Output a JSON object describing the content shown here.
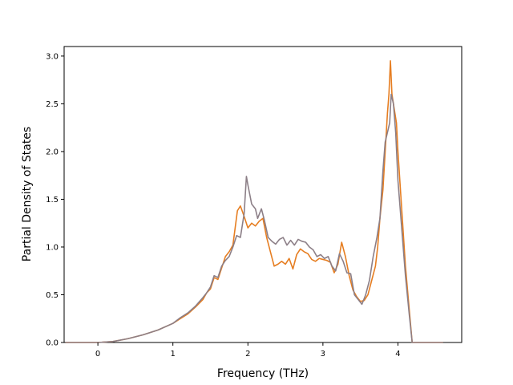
{
  "chart_data": {
    "type": "line",
    "title": "",
    "xlabel": "Frequency (THz)",
    "ylabel": "Partial Density of States",
    "xlim": [
      -0.45,
      4.85
    ],
    "ylim": [
      0.0,
      3.1
    ],
    "x_ticks": [
      0,
      1,
      2,
      3,
      4
    ],
    "y_ticks": [
      0.0,
      0.5,
      1.0,
      1.5,
      2.0,
      2.5,
      3.0
    ],
    "x_tick_labels": [
      "0",
      "1",
      "2",
      "3",
      "4"
    ],
    "y_tick_labels": [
      "0.0",
      "0.5",
      "1.0",
      "1.5",
      "2.0",
      "2.5",
      "3.0"
    ],
    "grid": false,
    "legend": "none",
    "series": [
      {
        "color": "#e67e22",
        "points": [
          [
            -0.43,
            0.0
          ],
          [
            0.0,
            0.0
          ],
          [
            0.2,
            0.01
          ],
          [
            0.4,
            0.04
          ],
          [
            0.6,
            0.08
          ],
          [
            0.8,
            0.13
          ],
          [
            1.0,
            0.2
          ],
          [
            1.1,
            0.25
          ],
          [
            1.2,
            0.3
          ],
          [
            1.3,
            0.37
          ],
          [
            1.4,
            0.45
          ],
          [
            1.45,
            0.52
          ],
          [
            1.5,
            0.56
          ],
          [
            1.55,
            0.68
          ],
          [
            1.6,
            0.66
          ],
          [
            1.65,
            0.78
          ],
          [
            1.7,
            0.9
          ],
          [
            1.75,
            0.95
          ],
          [
            1.8,
            1.02
          ],
          [
            1.83,
            1.2
          ],
          [
            1.86,
            1.38
          ],
          [
            1.9,
            1.43
          ],
          [
            1.95,
            1.32
          ],
          [
            2.0,
            1.2
          ],
          [
            2.05,
            1.25
          ],
          [
            2.1,
            1.22
          ],
          [
            2.15,
            1.27
          ],
          [
            2.2,
            1.3
          ],
          [
            2.25,
            1.1
          ],
          [
            2.3,
            0.95
          ],
          [
            2.35,
            0.8
          ],
          [
            2.4,
            0.82
          ],
          [
            2.45,
            0.85
          ],
          [
            2.5,
            0.82
          ],
          [
            2.55,
            0.88
          ],
          [
            2.6,
            0.77
          ],
          [
            2.65,
            0.92
          ],
          [
            2.7,
            0.98
          ],
          [
            2.75,
            0.95
          ],
          [
            2.8,
            0.93
          ],
          [
            2.85,
            0.87
          ],
          [
            2.9,
            0.85
          ],
          [
            2.95,
            0.88
          ],
          [
            3.0,
            0.87
          ],
          [
            3.05,
            0.86
          ],
          [
            3.1,
            0.84
          ],
          [
            3.15,
            0.73
          ],
          [
            3.2,
            0.82
          ],
          [
            3.25,
            1.05
          ],
          [
            3.3,
            0.9
          ],
          [
            3.35,
            0.7
          ],
          [
            3.4,
            0.55
          ],
          [
            3.45,
            0.48
          ],
          [
            3.5,
            0.43
          ],
          [
            3.55,
            0.44
          ],
          [
            3.6,
            0.5
          ],
          [
            3.65,
            0.65
          ],
          [
            3.7,
            0.8
          ],
          [
            3.73,
            1.0
          ],
          [
            3.76,
            1.3
          ],
          [
            3.8,
            1.6
          ],
          [
            3.83,
            2.0
          ],
          [
            3.86,
            2.4
          ],
          [
            3.88,
            2.6
          ],
          [
            3.9,
            2.95
          ],
          [
            3.92,
            2.6
          ],
          [
            3.95,
            2.45
          ],
          [
            3.98,
            2.3
          ],
          [
            4.0,
            2.0
          ],
          [
            4.05,
            1.4
          ],
          [
            4.1,
            0.8
          ],
          [
            4.15,
            0.35
          ],
          [
            4.19,
            0.0
          ],
          [
            4.6,
            0.0
          ]
        ]
      },
      {
        "color": "#8c7f87",
        "points": [
          [
            -0.43,
            0.0
          ],
          [
            0.0,
            0.0
          ],
          [
            0.2,
            0.01
          ],
          [
            0.4,
            0.04
          ],
          [
            0.6,
            0.08
          ],
          [
            0.8,
            0.13
          ],
          [
            1.0,
            0.2
          ],
          [
            1.1,
            0.26
          ],
          [
            1.2,
            0.31
          ],
          [
            1.3,
            0.38
          ],
          [
            1.4,
            0.47
          ],
          [
            1.45,
            0.52
          ],
          [
            1.5,
            0.58
          ],
          [
            1.55,
            0.7
          ],
          [
            1.6,
            0.68
          ],
          [
            1.65,
            0.8
          ],
          [
            1.7,
            0.86
          ],
          [
            1.75,
            0.9
          ],
          [
            1.8,
            1.0
          ],
          [
            1.85,
            1.12
          ],
          [
            1.9,
            1.1
          ],
          [
            1.95,
            1.35
          ],
          [
            1.98,
            1.74
          ],
          [
            2.0,
            1.65
          ],
          [
            2.05,
            1.45
          ],
          [
            2.1,
            1.4
          ],
          [
            2.13,
            1.3
          ],
          [
            2.18,
            1.4
          ],
          [
            2.22,
            1.28
          ],
          [
            2.27,
            1.1
          ],
          [
            2.32,
            1.06
          ],
          [
            2.37,
            1.03
          ],
          [
            2.42,
            1.08
          ],
          [
            2.47,
            1.1
          ],
          [
            2.52,
            1.02
          ],
          [
            2.57,
            1.07
          ],
          [
            2.62,
            1.02
          ],
          [
            2.67,
            1.08
          ],
          [
            2.72,
            1.06
          ],
          [
            2.77,
            1.05
          ],
          [
            2.82,
            1.0
          ],
          [
            2.87,
            0.97
          ],
          [
            2.92,
            0.9
          ],
          [
            2.97,
            0.92
          ],
          [
            3.02,
            0.88
          ],
          [
            3.07,
            0.9
          ],
          [
            3.12,
            0.8
          ],
          [
            3.17,
            0.75
          ],
          [
            3.22,
            0.93
          ],
          [
            3.27,
            0.85
          ],
          [
            3.32,
            0.73
          ],
          [
            3.37,
            0.72
          ],
          [
            3.42,
            0.5
          ],
          [
            3.47,
            0.45
          ],
          [
            3.52,
            0.4
          ],
          [
            3.57,
            0.5
          ],
          [
            3.62,
            0.65
          ],
          [
            3.67,
            0.9
          ],
          [
            3.72,
            1.1
          ],
          [
            3.76,
            1.3
          ],
          [
            3.8,
            1.8
          ],
          [
            3.83,
            2.1
          ],
          [
            3.86,
            2.2
          ],
          [
            3.89,
            2.3
          ],
          [
            3.91,
            2.6
          ],
          [
            3.94,
            2.5
          ],
          [
            3.97,
            2.2
          ],
          [
            4.0,
            1.7
          ],
          [
            4.05,
            1.2
          ],
          [
            4.1,
            0.7
          ],
          [
            4.15,
            0.3
          ],
          [
            4.19,
            0.0
          ],
          [
            4.6,
            0.0
          ]
        ]
      }
    ]
  }
}
